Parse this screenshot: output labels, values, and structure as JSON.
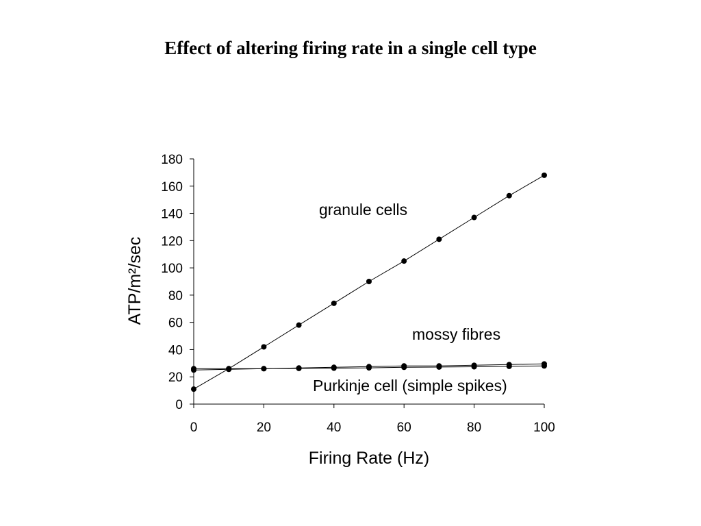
{
  "chart_data": {
    "type": "scatter",
    "title": "Effect of altering firing rate in a single cell type",
    "xlabel": "Firing Rate (Hz)",
    "ylabel": "ATP/m²/sec",
    "xlim": [
      0,
      100
    ],
    "ylim": [
      0,
      180
    ],
    "xticks": [
      0,
      20,
      40,
      60,
      80,
      100
    ],
    "yticks": [
      0,
      20,
      40,
      60,
      80,
      100,
      120,
      140,
      160,
      180
    ],
    "grid": false,
    "legend": "none",
    "marker_color": "#000000",
    "x": [
      0,
      10,
      20,
      30,
      40,
      50,
      60,
      70,
      80,
      90,
      100
    ],
    "series": [
      {
        "label": "granule cells",
        "values": [
          11,
          26,
          42,
          58,
          74,
          90,
          105,
          121,
          137,
          153,
          168
        ]
      },
      {
        "label": "mossy fibres",
        "values": [
          25,
          25.5,
          26,
          26.5,
          27,
          27.5,
          28,
          28,
          28.5,
          29,
          29.5
        ]
      },
      {
        "label": "Purkinje cell (simple spikes)",
        "values": [
          26,
          26,
          26,
          26.2,
          26.4,
          26.6,
          27,
          27.2,
          27.4,
          27.7,
          28
        ]
      }
    ]
  }
}
